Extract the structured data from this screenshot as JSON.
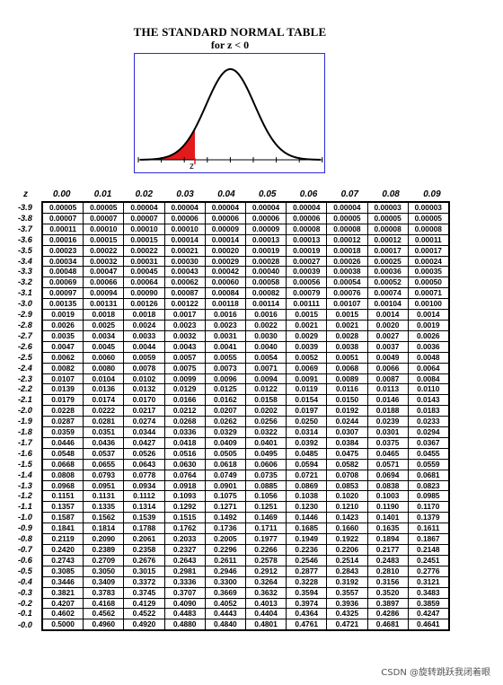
{
  "title": "THE STANDARD NORMAL TABLE",
  "subtitle": "for z < 0",
  "figure": {
    "label": "z",
    "shade_color": "#e31a1c",
    "frame_color": "#2b2bd8"
  },
  "table": {
    "row_header": "z",
    "columns": [
      "0.00",
      "0.01",
      "0.02",
      "0.03",
      "0.04",
      "0.05",
      "0.06",
      "0.07",
      "0.08",
      "0.09"
    ],
    "rows": [
      {
        "z": "-3.9",
        "v": [
          "0.00005",
          "0.00005",
          "0.00004",
          "0.00004",
          "0.00004",
          "0.00004",
          "0.00004",
          "0.00004",
          "0.00003",
          "0.00003"
        ]
      },
      {
        "z": "-3.8",
        "v": [
          "0.00007",
          "0.00007",
          "0.00007",
          "0.00006",
          "0.00006",
          "0.00006",
          "0.00006",
          "0.00005",
          "0.00005",
          "0.00005"
        ]
      },
      {
        "z": "-3.7",
        "v": [
          "0.00011",
          "0.00010",
          "0.00010",
          "0.00010",
          "0.00009",
          "0.00009",
          "0.00008",
          "0.00008",
          "0.00008",
          "0.00008"
        ]
      },
      {
        "z": "-3.6",
        "v": [
          "0.00016",
          "0.00015",
          "0.00015",
          "0.00014",
          "0.00014",
          "0.00013",
          "0.00013",
          "0.00012",
          "0.00012",
          "0.00011"
        ]
      },
      {
        "z": "-3.5",
        "v": [
          "0.00023",
          "0.00022",
          "0.00022",
          "0.00021",
          "0.00020",
          "0.00019",
          "0.00019",
          "0.00018",
          "0.00017",
          "0.00017"
        ]
      },
      {
        "z": "-3.4",
        "v": [
          "0.00034",
          "0.00032",
          "0.00031",
          "0.00030",
          "0.00029",
          "0.00028",
          "0.00027",
          "0.00026",
          "0.00025",
          "0.00024"
        ]
      },
      {
        "z": "-3.3",
        "v": [
          "0.00048",
          "0.00047",
          "0.00045",
          "0.00043",
          "0.00042",
          "0.00040",
          "0.00039",
          "0.00038",
          "0.00036",
          "0.00035"
        ]
      },
      {
        "z": "-3.2",
        "v": [
          "0.00069",
          "0.00066",
          "0.00064",
          "0.00062",
          "0.00060",
          "0.00058",
          "0.00056",
          "0.00054",
          "0.00052",
          "0.00050"
        ]
      },
      {
        "z": "-3.1",
        "v": [
          "0.00097",
          "0.00094",
          "0.00090",
          "0.00087",
          "0.00084",
          "0.00082",
          "0.00079",
          "0.00076",
          "0.00074",
          "0.00071"
        ]
      },
      {
        "z": "-3.0",
        "v": [
          "0.00135",
          "0.00131",
          "0.00126",
          "0.00122",
          "0.00118",
          "0.00114",
          "0.00111",
          "0.00107",
          "0.00104",
          "0.00100"
        ]
      },
      {
        "z": "-2.9",
        "v": [
          "0.0019",
          "0.0018",
          "0.0018",
          "0.0017",
          "0.0016",
          "0.0016",
          "0.0015",
          "0.0015",
          "0.0014",
          "0.0014"
        ]
      },
      {
        "z": "-2.8",
        "v": [
          "0.0026",
          "0.0025",
          "0.0024",
          "0.0023",
          "0.0023",
          "0.0022",
          "0.0021",
          "0.0021",
          "0.0020",
          "0.0019"
        ]
      },
      {
        "z": "-2.7",
        "v": [
          "0.0035",
          "0.0034",
          "0.0033",
          "0.0032",
          "0.0031",
          "0.0030",
          "0.0029",
          "0.0028",
          "0.0027",
          "0.0026"
        ]
      },
      {
        "z": "-2.6",
        "v": [
          "0.0047",
          "0.0045",
          "0.0044",
          "0.0043",
          "0.0041",
          "0.0040",
          "0.0039",
          "0.0038",
          "0.0037",
          "0.0036"
        ]
      },
      {
        "z": "-2.5",
        "v": [
          "0.0062",
          "0.0060",
          "0.0059",
          "0.0057",
          "0.0055",
          "0.0054",
          "0.0052",
          "0.0051",
          "0.0049",
          "0.0048"
        ]
      },
      {
        "z": "-2.4",
        "v": [
          "0.0082",
          "0.0080",
          "0.0078",
          "0.0075",
          "0.0073",
          "0.0071",
          "0.0069",
          "0.0068",
          "0.0066",
          "0.0064"
        ]
      },
      {
        "z": "-2.3",
        "v": [
          "0.0107",
          "0.0104",
          "0.0102",
          "0.0099",
          "0.0096",
          "0.0094",
          "0.0091",
          "0.0089",
          "0.0087",
          "0.0084"
        ]
      },
      {
        "z": "-2.2",
        "v": [
          "0.0139",
          "0.0136",
          "0.0132",
          "0.0129",
          "0.0125",
          "0.0122",
          "0.0119",
          "0.0116",
          "0.0113",
          "0.0110"
        ]
      },
      {
        "z": "-2.1",
        "v": [
          "0.0179",
          "0.0174",
          "0.0170",
          "0.0166",
          "0.0162",
          "0.0158",
          "0.0154",
          "0.0150",
          "0.0146",
          "0.0143"
        ]
      },
      {
        "z": "-2.0",
        "v": [
          "0.0228",
          "0.0222",
          "0.0217",
          "0.0212",
          "0.0207",
          "0.0202",
          "0.0197",
          "0.0192",
          "0.0188",
          "0.0183"
        ]
      },
      {
        "z": "-1.9",
        "v": [
          "0.0287",
          "0.0281",
          "0.0274",
          "0.0268",
          "0.0262",
          "0.0256",
          "0.0250",
          "0.0244",
          "0.0239",
          "0.0233"
        ]
      },
      {
        "z": "-1.8",
        "v": [
          "0.0359",
          "0.0351",
          "0.0344",
          "0.0336",
          "0.0329",
          "0.0322",
          "0.0314",
          "0.0307",
          "0.0301",
          "0.0294"
        ]
      },
      {
        "z": "-1.7",
        "v": [
          "0.0446",
          "0.0436",
          "0.0427",
          "0.0418",
          "0.0409",
          "0.0401",
          "0.0392",
          "0.0384",
          "0.0375",
          "0.0367"
        ]
      },
      {
        "z": "-1.6",
        "v": [
          "0.0548",
          "0.0537",
          "0.0526",
          "0.0516",
          "0.0505",
          "0.0495",
          "0.0485",
          "0.0475",
          "0.0465",
          "0.0455"
        ]
      },
      {
        "z": "-1.5",
        "v": [
          "0.0668",
          "0.0655",
          "0.0643",
          "0.0630",
          "0.0618",
          "0.0606",
          "0.0594",
          "0.0582",
          "0.0571",
          "0.0559"
        ]
      },
      {
        "z": "-1.4",
        "v": [
          "0.0808",
          "0.0793",
          "0.0778",
          "0.0764",
          "0.0749",
          "0.0735",
          "0.0721",
          "0.0708",
          "0.0694",
          "0.0681"
        ]
      },
      {
        "z": "-1.3",
        "v": [
          "0.0968",
          "0.0951",
          "0.0934",
          "0.0918",
          "0.0901",
          "0.0885",
          "0.0869",
          "0.0853",
          "0.0838",
          "0.0823"
        ]
      },
      {
        "z": "-1.2",
        "v": [
          "0.1151",
          "0.1131",
          "0.1112",
          "0.1093",
          "0.1075",
          "0.1056",
          "0.1038",
          "0.1020",
          "0.1003",
          "0.0985"
        ]
      },
      {
        "z": "-1.1",
        "v": [
          "0.1357",
          "0.1335",
          "0.1314",
          "0.1292",
          "0.1271",
          "0.1251",
          "0.1230",
          "0.1210",
          "0.1190",
          "0.1170"
        ]
      },
      {
        "z": "-1.0",
        "v": [
          "0.1587",
          "0.1562",
          "0.1539",
          "0.1515",
          "0.1492",
          "0.1469",
          "0.1446",
          "0.1423",
          "0.1401",
          "0.1379"
        ]
      },
      {
        "z": "-0.9",
        "v": [
          "0.1841",
          "0.1814",
          "0.1788",
          "0.1762",
          "0.1736",
          "0.1711",
          "0.1685",
          "0.1660",
          "0.1635",
          "0.1611"
        ]
      },
      {
        "z": "-0.8",
        "v": [
          "0.2119",
          "0.2090",
          "0.2061",
          "0.2033",
          "0.2005",
          "0.1977",
          "0.1949",
          "0.1922",
          "0.1894",
          "0.1867"
        ]
      },
      {
        "z": "-0.7",
        "v": [
          "0.2420",
          "0.2389",
          "0.2358",
          "0.2327",
          "0.2296",
          "0.2266",
          "0.2236",
          "0.2206",
          "0.2177",
          "0.2148"
        ]
      },
      {
        "z": "-0.6",
        "v": [
          "0.2743",
          "0.2709",
          "0.2676",
          "0.2643",
          "0.2611",
          "0.2578",
          "0.2546",
          "0.2514",
          "0.2483",
          "0.2451"
        ]
      },
      {
        "z": "-0.5",
        "v": [
          "0.3085",
          "0.3050",
          "0.3015",
          "0.2981",
          "0.2946",
          "0.2912",
          "0.2877",
          "0.2843",
          "0.2810",
          "0.2776"
        ]
      },
      {
        "z": "-0.4",
        "v": [
          "0.3446",
          "0.3409",
          "0.3372",
          "0.3336",
          "0.3300",
          "0.3264",
          "0.3228",
          "0.3192",
          "0.3156",
          "0.3121"
        ]
      },
      {
        "z": "-0.3",
        "v": [
          "0.3821",
          "0.3783",
          "0.3745",
          "0.3707",
          "0.3669",
          "0.3632",
          "0.3594",
          "0.3557",
          "0.3520",
          "0.3483"
        ]
      },
      {
        "z": "-0.2",
        "v": [
          "0.4207",
          "0.4168",
          "0.4129",
          "0.4090",
          "0.4052",
          "0.4013",
          "0.3974",
          "0.3936",
          "0.3897",
          "0.3859"
        ]
      },
      {
        "z": "-0.1",
        "v": [
          "0.4602",
          "0.4562",
          "0.4522",
          "0.4483",
          "0.4443",
          "0.4404",
          "0.4364",
          "0.4325",
          "0.4286",
          "0.4247"
        ]
      },
      {
        "z": "-0.0",
        "v": [
          "0.5000",
          "0.4960",
          "0.4920",
          "0.4880",
          "0.4840",
          "0.4801",
          "0.4761",
          "0.4721",
          "0.4681",
          "0.4641"
        ]
      }
    ]
  },
  "watermark": "CSDN @旋转跳跃我闭着眼"
}
